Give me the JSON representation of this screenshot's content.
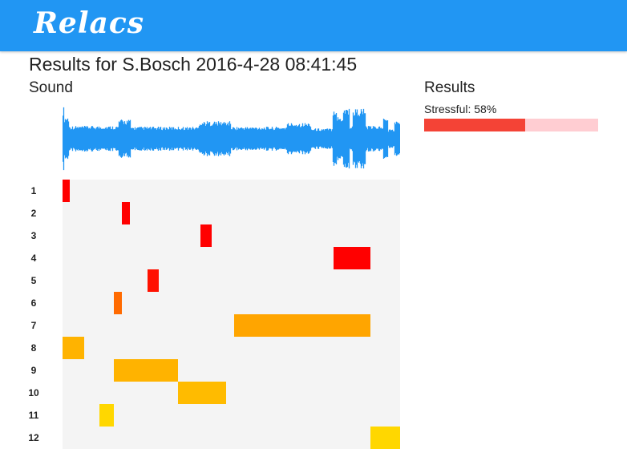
{
  "app": {
    "title": "Relacs"
  },
  "page": {
    "title": "Results for S.Bosch 2016-4-28 08:41:45"
  },
  "sound": {
    "heading": "Sound",
    "waveform_color": "#2196F3"
  },
  "results": {
    "heading": "Results",
    "stressful": {
      "label": "Stressful: 58%",
      "value": 0.58,
      "fill_color": "#f44336",
      "track_color": "#ffcdd2"
    }
  },
  "timeline": {
    "rows": [
      {
        "label": "1",
        "segments": [
          {
            "start": 0.0,
            "end": 0.021,
            "color": "#ff0000"
          }
        ]
      },
      {
        "label": "2",
        "segments": [
          {
            "start": 0.176,
            "end": 0.2,
            "color": "#ff0000"
          }
        ]
      },
      {
        "label": "3",
        "segments": [
          {
            "start": 0.409,
            "end": 0.442,
            "color": "#ff0000"
          }
        ]
      },
      {
        "label": "4",
        "segments": [
          {
            "start": 0.803,
            "end": 0.912,
            "color": "#ff0000"
          }
        ]
      },
      {
        "label": "5",
        "segments": [
          {
            "start": 0.252,
            "end": 0.285,
            "color": "#ff1100"
          }
        ]
      },
      {
        "label": "6",
        "segments": [
          {
            "start": 0.152,
            "end": 0.176,
            "color": "#ff6a00"
          }
        ]
      },
      {
        "label": "7",
        "segments": [
          {
            "start": 0.508,
            "end": 0.912,
            "color": "#ffa500"
          }
        ]
      },
      {
        "label": "8",
        "segments": [
          {
            "start": 0.0,
            "end": 0.064,
            "color": "#ffb300"
          }
        ]
      },
      {
        "label": "9",
        "segments": [
          {
            "start": 0.152,
            "end": 0.342,
            "color": "#ffb300"
          }
        ]
      },
      {
        "label": "10",
        "segments": [
          {
            "start": 0.342,
            "end": 0.484,
            "color": "#ffbb00"
          }
        ]
      },
      {
        "label": "11",
        "segments": [
          {
            "start": 0.109,
            "end": 0.152,
            "color": "#ffd700"
          }
        ]
      },
      {
        "label": "12",
        "segments": [
          {
            "start": 0.912,
            "end": 1.0,
            "color": "#ffd700"
          }
        ]
      }
    ]
  }
}
